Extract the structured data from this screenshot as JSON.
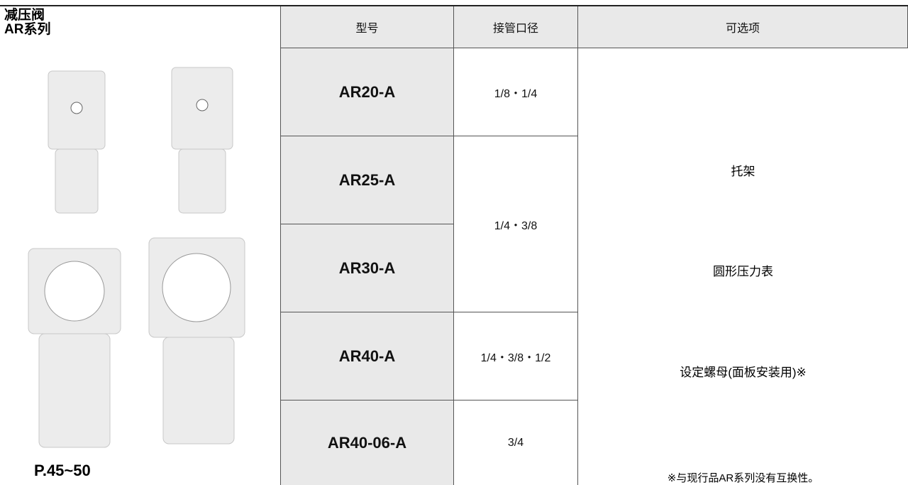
{
  "panel": {
    "title_lines": [
      "减压阀",
      "AR系列"
    ],
    "page_ref": "P.45~50"
  },
  "table": {
    "headers": [
      "型号",
      "接管口径",
      "可选项"
    ],
    "models": [
      "AR20-A",
      "AR25-A",
      "AR30-A",
      "AR40-A",
      "AR40-06-A"
    ],
    "ports": [
      "1/8・1/4",
      "1/4・3/8",
      "1/4・3/8・1/2",
      "3/4"
    ],
    "options": [
      "托架",
      "圆形压力表",
      "设定螺母(面板安装用)※"
    ],
    "note": "※与现行品AR系列没有互换性。"
  }
}
